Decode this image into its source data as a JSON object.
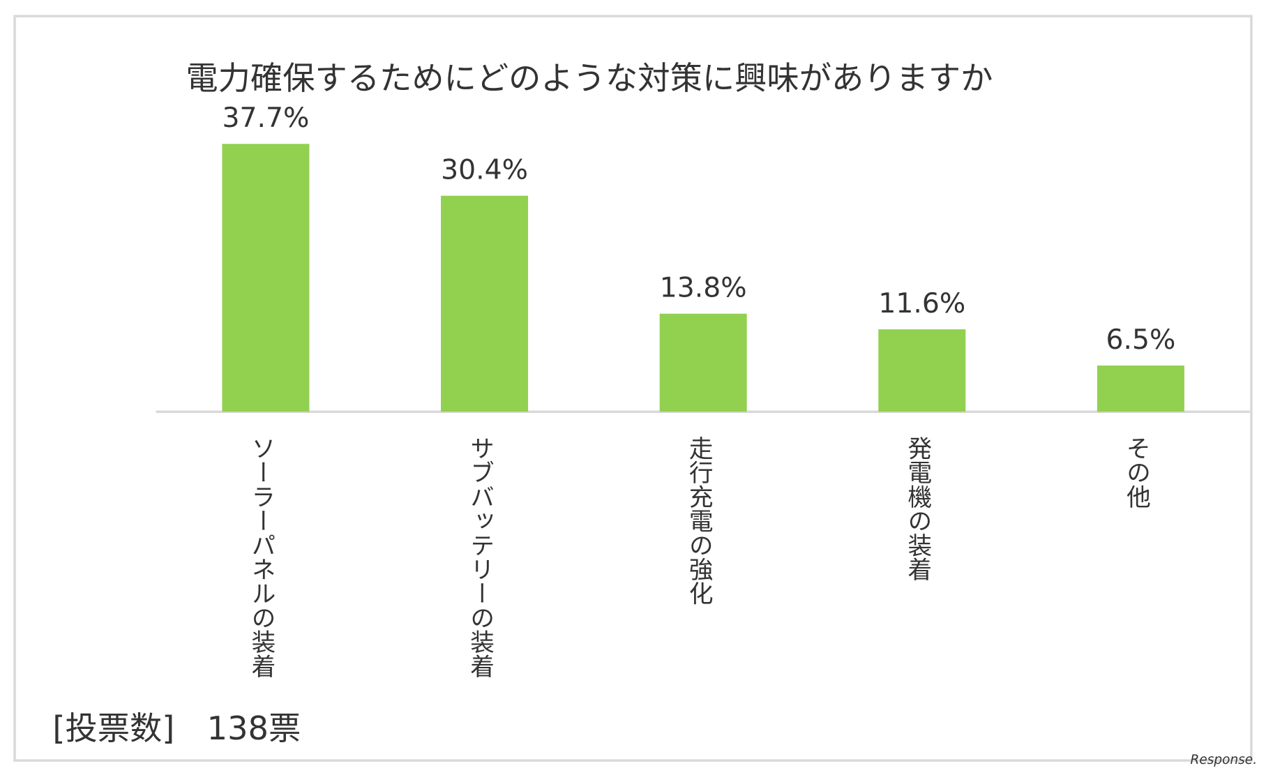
{
  "chart_data": {
    "type": "bar",
    "title": "電力確保するためにどのような対策に興味がありますか",
    "categories": [
      "ソーラーパネルの装着",
      "サブバッテリーの装着",
      "走行充電の強化",
      "発電機の装着",
      "その他"
    ],
    "values": [
      37.7,
      30.4,
      13.8,
      11.6,
      6.5
    ],
    "value_labels": [
      "37.7%",
      "30.4%",
      "13.8%",
      "11.6%",
      "6.5%"
    ],
    "color": "#92d050",
    "note": "[投票数]　138票",
    "watermark": "Response."
  }
}
